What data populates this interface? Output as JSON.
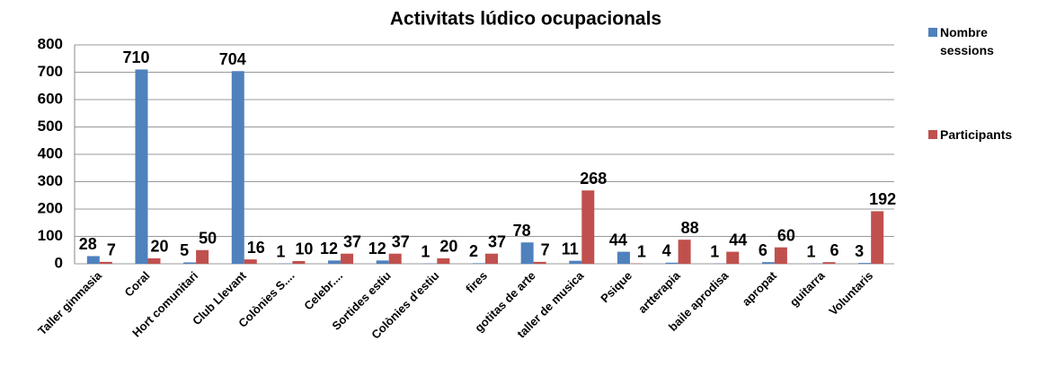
{
  "chart_data": {
    "type": "bar",
    "title": "Activitats lúdico ocupacionals",
    "categories": [
      "Taller  ginmasia",
      "Coral",
      "Hort comunitari",
      "Club Llevant",
      "Colònies S....",
      "Celebr....",
      "Sortides estiu",
      "Colònies d'estiu",
      "fires",
      "gotitas de arte",
      "taller de musica",
      "Psique",
      "artterapia",
      "baile aprodisa",
      "apropat",
      "guitarra",
      "Voluntaris"
    ],
    "series": [
      {
        "name": "Nombre sessions",
        "color": "#4f81bd",
        "values": [
          28,
          710,
          5,
          704,
          1,
          12,
          12,
          1,
          2,
          78,
          11,
          44,
          4,
          1,
          6,
          1,
          3
        ]
      },
      {
        "name": "Participants",
        "color": "#c0504d",
        "values": [
          7,
          20,
          50,
          16,
          10,
          37,
          37,
          20,
          37,
          7,
          268,
          1,
          88,
          44,
          60,
          6,
          192
        ]
      }
    ],
    "ylim": [
      0,
      800
    ],
    "yticks": [
      0,
      100,
      200,
      300,
      400,
      500,
      600,
      700,
      800
    ],
    "grid": true,
    "legend": "right"
  }
}
